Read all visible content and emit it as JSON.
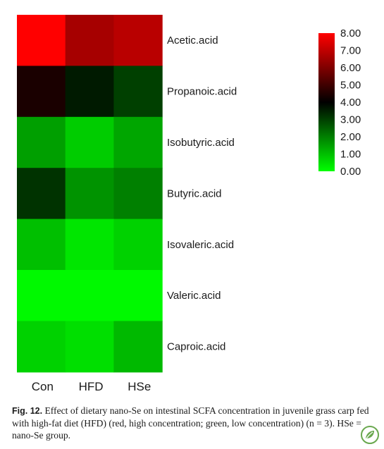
{
  "chart_data": {
    "type": "heatmap",
    "columns": [
      "Con",
      "HFD",
      "HSe"
    ],
    "rows": [
      "Acetic.acid",
      "Propanoic.acid",
      "Isobutyric.acid",
      "Butyric.acid",
      "Isovaleric.acid",
      "Valeric.acid",
      "Caproic.acid"
    ],
    "values": [
      [
        8.0,
        6.6,
        6.9
      ],
      [
        4.4,
        3.6,
        3.0
      ],
      [
        1.5,
        0.8,
        1.4
      ],
      [
        3.2,
        1.7,
        2.0
      ],
      [
        1.0,
        0.4,
        0.7
      ],
      [
        0.1,
        0.1,
        0.1
      ],
      [
        0.7,
        0.5,
        1.1
      ]
    ],
    "colorbar": {
      "min": 0,
      "max": 8,
      "ticks": [
        "8.00",
        "7.00",
        "6.00",
        "5.00",
        "4.00",
        "3.00",
        "2.00",
        "1.00",
        "0.00"
      ],
      "colors": {
        "low": "#00ff00",
        "mid": "#000000",
        "high": "#ff0000"
      },
      "placement": "top-right"
    },
    "title": "",
    "xlabel": "",
    "ylabel": ""
  },
  "caption": {
    "label": "Fig. 12.",
    "text": " Effect of dietary nano-Se on intestinal SCFA concentration in juvenile grass carp fed with high-fat diet (HFD) (red, high concentration; green, low concentration) (n = 3). HSe = nano-Se group."
  },
  "logo_icon": "publisher-leaf-logo-icon"
}
